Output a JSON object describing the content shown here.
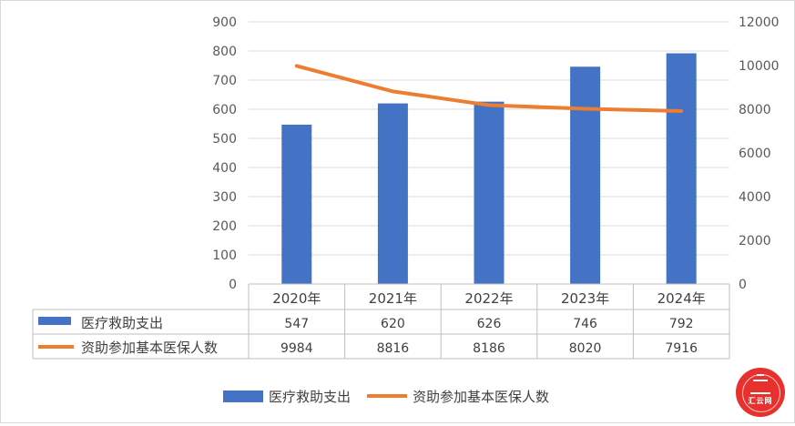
{
  "chart_data": {
    "type": "bar",
    "categories": [
      "2020年",
      "2021年",
      "2022年",
      "2023年",
      "2024年"
    ],
    "series": [
      {
        "name": "医疗救助支出",
        "type": "bar",
        "axis": "left",
        "values": [
          547,
          620,
          626,
          746,
          792
        ]
      },
      {
        "name": "资助参加基本医保人数",
        "type": "line",
        "axis": "right",
        "values": [
          9984,
          8816,
          8186,
          8020,
          7916
        ]
      }
    ],
    "left_axis": {
      "min": 0,
      "max": 900,
      "ticks": [
        0,
        100,
        200,
        300,
        400,
        500,
        600,
        700,
        800,
        900
      ]
    },
    "right_axis": {
      "min": 0,
      "max": 12000,
      "ticks": [
        0,
        2000,
        4000,
        6000,
        8000,
        10000,
        12000
      ]
    },
    "data_table": true,
    "legend_position": "bottom",
    "grid": true
  },
  "colors": {
    "bar": "#4472c4",
    "line": "#ed7d31",
    "grid": "#d9d9d9",
    "text": "#595959",
    "watermark": "#e8312d"
  },
  "watermark": {
    "text": "汇云网"
  }
}
